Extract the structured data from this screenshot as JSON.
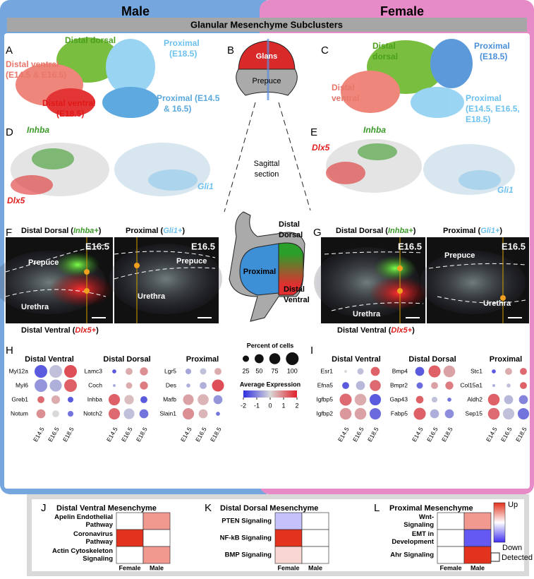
{
  "header": {
    "male": "Male",
    "female": "Female",
    "title": "Glanular Mesenchyme Subclusters"
  },
  "A": {
    "letter": "A",
    "labels": [
      [
        "Distal dorsal"
      ],
      [
        "Distal ventral",
        "(E14.5 & E16.5)"
      ],
      [
        "Distal ventral",
        "(E18.5)"
      ],
      [
        "Proximal",
        "(E18.5)"
      ],
      [
        "Proximal (E14.5",
        "& 16.5)"
      ]
    ]
  },
  "B": {
    "letter": "B",
    "glans": "Glans",
    "prepuce": "Prepuce"
  },
  "C": {
    "letter": "C",
    "labels": [
      [
        "Distal",
        "dorsal"
      ],
      [
        "Proximal",
        "(E18.5)"
      ],
      [
        "Distal",
        "ventral"
      ],
      [
        "Proximal",
        "(E14.5, E16.5,",
        "E18.5)"
      ]
    ]
  },
  "D": {
    "letter": "D",
    "genes": [
      "Inhba",
      "Dlx5",
      "Gli1"
    ]
  },
  "E": {
    "letter": "E",
    "genes": [
      "Inhba",
      "Dlx5",
      "Gli1"
    ]
  },
  "sagittal": [
    "Sagittal",
    "section"
  ],
  "F": {
    "letter": "F",
    "left_title": [
      "Distal Dorsal (",
      "Inhba+",
      ")"
    ],
    "right_title": [
      "Proximal (",
      "Gli1+",
      ")"
    ],
    "stage": "E16.5",
    "left_labels": [
      "Prepuce",
      "Urethra"
    ],
    "right_labels": [
      "Prepuce",
      "Urethra"
    ],
    "bottom_title": [
      "Distal Ventral (",
      "Dlx5+",
      ")"
    ]
  },
  "schematic": {
    "dorsal": [
      "Distal",
      "Dorsal"
    ],
    "proximal": "Proximal",
    "ventral": [
      "Distal",
      "Ventral"
    ]
  },
  "G": {
    "letter": "G",
    "left_title": [
      "Distal Dorsal (",
      "Inhba+",
      ")"
    ],
    "right_title": [
      "Proximal (",
      "Gli1+",
      ")"
    ],
    "stage": "E16.5",
    "left_labels": [
      "Urethra"
    ],
    "right_labels": [
      "Prepuce",
      "Urethra"
    ],
    "bottom_title": [
      "Distal Ventral (",
      "Dlx5+",
      ")"
    ]
  },
  "H": {
    "letter": "H",
    "timepoints": [
      "E14.5",
      "E16.5",
      "E18.5"
    ],
    "panels": [
      {
        "title": "Distal Ventral",
        "genes": [
          "Myl12a",
          "Myl6",
          "Greb1",
          "Notum"
        ],
        "percent": [
          [
            100,
            100,
            100
          ],
          [
            100,
            90,
            100
          ],
          [
            30,
            45,
            20
          ],
          [
            50,
            30,
            20
          ]
        ],
        "expression": [
          [
            -1.5,
            -0.3,
            1.5
          ],
          [
            -0.8,
            -0.5,
            1.3
          ],
          [
            1.2,
            0.5,
            -1.5
          ],
          [
            0.8,
            0,
            -1.2
          ]
        ]
      },
      {
        "title": "Distal Dorsal",
        "genes": [
          "Lamc3",
          "Coch",
          "Inhba",
          "Notch2"
        ],
        "percent": [
          [
            10,
            30,
            40
          ],
          [
            5,
            25,
            40
          ],
          [
            80,
            55,
            30
          ],
          [
            80,
            70,
            50
          ]
        ],
        "expression": [
          [
            -1.5,
            0.5,
            0.8
          ],
          [
            -0.5,
            0.5,
            1
          ],
          [
            1.3,
            0.3,
            -1.5
          ],
          [
            1.2,
            -0.3,
            -1.2
          ]
        ]
      },
      {
        "title": "Proximal",
        "genes": [
          "Lgr5",
          "Des",
          "Mafb",
          "Slain1"
        ],
        "percent": [
          [
            20,
            25,
            30
          ],
          [
            10,
            30,
            90
          ],
          [
            70,
            75,
            50
          ],
          [
            80,
            50,
            10
          ]
        ],
        "expression": [
          [
            -0.6,
            -0.3,
            0.5
          ],
          [
            -0.5,
            -0.5,
            1.5
          ],
          [
            0.6,
            0.4,
            -0.8
          ],
          [
            0.8,
            0.4,
            -1.2
          ]
        ]
      }
    ]
  },
  "I": {
    "letter": "I",
    "timepoints": [
      "E14.5",
      "E16.5",
      "E18.5"
    ],
    "panels": [
      {
        "title": "Distal Ventral",
        "genes": [
          "Esr1",
          "Efna5",
          "Igfbp5",
          "Igfbp2"
        ],
        "percent": [
          [
            5,
            25,
            50
          ],
          [
            30,
            50,
            75
          ],
          [
            90,
            85,
            80
          ],
          [
            85,
            85,
            80
          ]
        ],
        "expression": [
          [
            0,
            -0.3,
            1.3
          ],
          [
            -1.5,
            -0.4,
            1.2
          ],
          [
            1.2,
            0.5,
            -1.5
          ],
          [
            0.7,
            0.6,
            -1.3
          ]
        ]
      },
      {
        "title": "Distal Dorsal",
        "genes": [
          "Bmp4",
          "Bmpr2",
          "Gap43",
          "Fabp5"
        ],
        "percent": [
          [
            50,
            90,
            85
          ],
          [
            25,
            30,
            40
          ],
          [
            35,
            20,
            10
          ],
          [
            90,
            50,
            50
          ]
        ],
        "expression": [
          [
            -1.5,
            1.3,
            0.6
          ],
          [
            -1.3,
            0.6,
            1
          ],
          [
            1.3,
            -0.3,
            -1.2
          ],
          [
            1.3,
            -0.5,
            -0.9
          ]
        ]
      },
      {
        "title": "Proximal",
        "genes": [
          "Stc1",
          "Col15a1",
          "Aldh2",
          "Sep15"
        ],
        "percent": [
          [
            10,
            30,
            30
          ],
          [
            5,
            10,
            30
          ],
          [
            85,
            50,
            50
          ],
          [
            85,
            80,
            80
          ]
        ],
        "expression": [
          [
            -1.5,
            0.5,
            1.2
          ],
          [
            -0.5,
            -0.3,
            1.3
          ],
          [
            1.3,
            -0.4,
            -1
          ],
          [
            1.2,
            -0.3,
            -1.2
          ]
        ]
      }
    ]
  },
  "dot_legend": {
    "size_title": "Percent of cells",
    "sizes": [
      25,
      50,
      75,
      100
    ],
    "color_title": "Average Expression",
    "color_ticks": [
      -2,
      -1,
      0,
      1,
      2
    ]
  },
  "heatmaps": {
    "columns": [
      "Female",
      "Male"
    ],
    "panels": [
      {
        "letter": "J",
        "title": "Distal Ventral Mesenchyme",
        "rows": [
          [
            "Apelin Endothelial",
            "Pathway"
          ],
          [
            "Coronavirus",
            "Pathway"
          ],
          [
            "Actin Cytoskeleton",
            "Signaling"
          ]
        ],
        "values": [
          [
            0,
            0.5
          ],
          [
            1,
            0
          ],
          [
            0,
            0.5
          ]
        ]
      },
      {
        "letter": "K",
        "title": "Distal Dorsal Mesenchyme",
        "rows": [
          [
            "PTEN Signaling"
          ],
          [
            "NF-kB Signaling"
          ],
          [
            "BMP Signaling"
          ]
        ],
        "values": [
          [
            -0.3,
            0
          ],
          [
            1,
            0
          ],
          [
            0.2,
            0
          ]
        ]
      },
      {
        "letter": "L",
        "title": "Proximal Mesenchyme",
        "rows": [
          [
            "Wnt-",
            "Signaling"
          ],
          [
            "EMT in",
            "Development"
          ],
          [
            "Ahr Signaling"
          ]
        ],
        "values": [
          [
            0,
            0.5
          ],
          [
            0,
            -0.8
          ],
          [
            0,
            1
          ]
        ]
      }
    ],
    "legend": {
      "up": "Up",
      "down": "Down",
      "detected": "Detected"
    }
  }
}
